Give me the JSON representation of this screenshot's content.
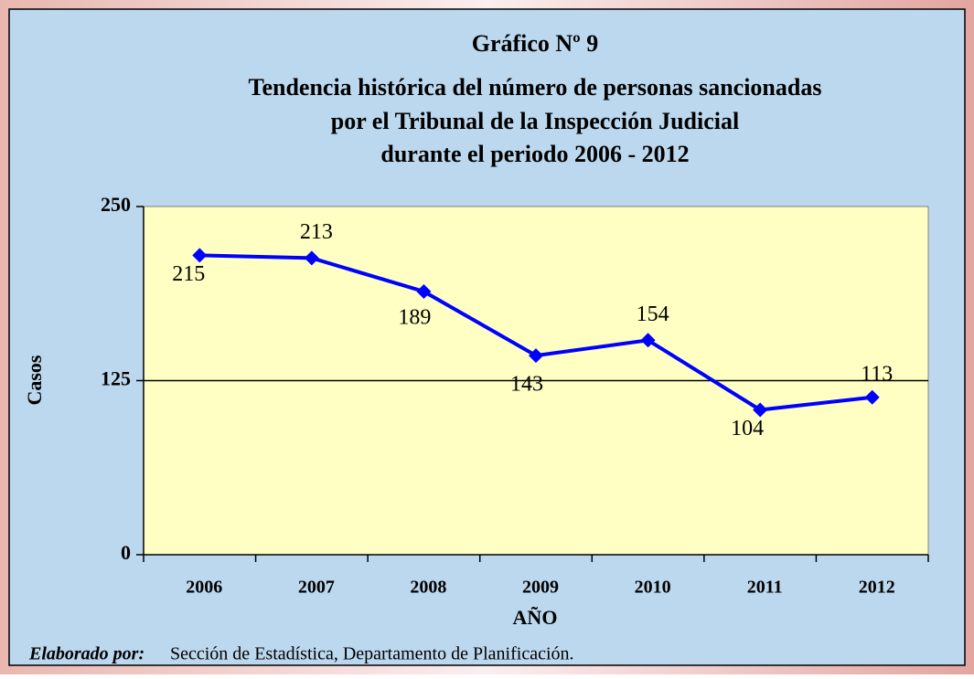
{
  "chart_data": {
    "type": "line",
    "title_lines": [
      "Gráfico Nº 9",
      "Tendencia histórica del número de personas sancionadas",
      "por el Tribunal de la Inspección Judicial",
      "durante el periodo 2006 - 2012"
    ],
    "x_label": "AÑO",
    "y_label": "Casos",
    "categories": [
      "2006",
      "2007",
      "2008",
      "2009",
      "2010",
      "2011",
      "2012"
    ],
    "series": [
      {
        "name": "Casos",
        "color": "#0000ff",
        "values": [
          215,
          213,
          189,
          143,
          154,
          104,
          113
        ]
      }
    ],
    "ylim": [
      0,
      250
    ],
    "yticks": [
      0,
      125,
      250
    ],
    "grid": true,
    "footer": {
      "label": "Elaborado por:",
      "text": "Sección de Estadística, Departamento de Planificación."
    }
  }
}
